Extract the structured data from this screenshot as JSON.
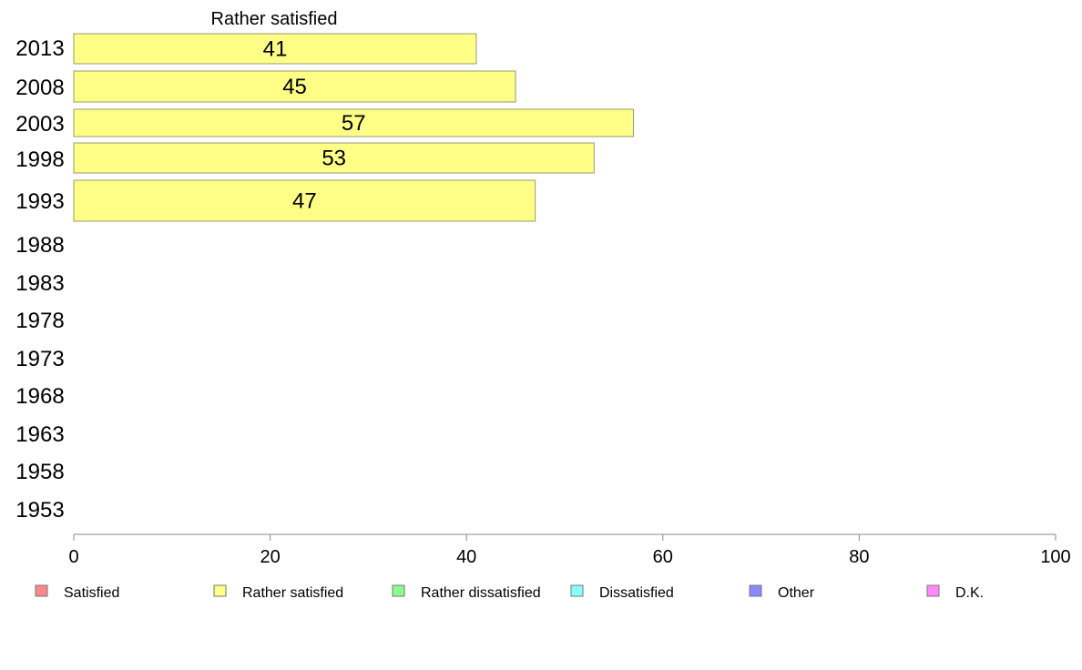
{
  "chart_data": {
    "type": "bar",
    "orientation": "horizontal",
    "title": "Rather satisfied",
    "categories": [
      "2013",
      "2008",
      "2003",
      "1998",
      "1993",
      "1988",
      "1983",
      "1978",
      "1973",
      "1968",
      "1963",
      "1958",
      "1953"
    ],
    "series": [
      {
        "name": "Rather satisfied",
        "color": "#ffff88",
        "values": [
          41,
          45,
          57,
          53,
          47,
          null,
          null,
          null,
          null,
          null,
          null,
          null,
          null
        ]
      }
    ],
    "xlim": [
      0,
      100
    ],
    "xticks": [
      0,
      20,
      40,
      60,
      80,
      100
    ],
    "grid": false,
    "legend": {
      "placement": "bottom",
      "entries": [
        {
          "label": "Satisfied",
          "color": "#ff8888"
        },
        {
          "label": "Rather satisfied",
          "color": "#ffff88"
        },
        {
          "label": "Rather dissatisfied",
          "color": "#88ff88"
        },
        {
          "label": "Dissatisfied",
          "color": "#88ffff"
        },
        {
          "label": "Other",
          "color": "#8888ff"
        },
        {
          "label": "D.K.",
          "color": "#ff88ff"
        }
      ]
    }
  }
}
